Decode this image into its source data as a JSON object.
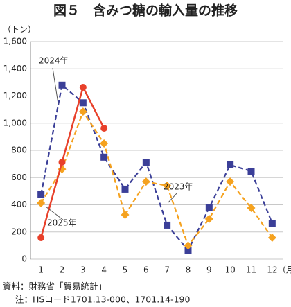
{
  "chart_data": {
    "type": "line",
    "title": "図５　含みつ糖の輸入量の推移",
    "y_unit": "（トン）",
    "x_unit": "（月）",
    "categories": [
      "1",
      "2",
      "3",
      "4",
      "5",
      "6",
      "7",
      "8",
      "9",
      "10",
      "11",
      "12"
    ],
    "series": [
      {
        "name": "2024年",
        "color": "#3b3f98",
        "values": [
          474,
          1280,
          1150,
          750,
          515,
          713,
          250,
          66,
          377,
          693,
          647,
          265
        ]
      },
      {
        "name": "2023年",
        "color": "#f5a21f",
        "values": [
          413,
          662,
          1085,
          851,
          326,
          570,
          540,
          100,
          296,
          570,
          377,
          158
        ]
      },
      {
        "name": "2025年",
        "color": "#e8402a",
        "values": [
          158,
          713,
          1264,
          963,
          null,
          null,
          null,
          null,
          null,
          null,
          null,
          null
        ]
      }
    ],
    "ylim": [
      0,
      1600
    ],
    "yticks": [
      0,
      200,
      400,
      600,
      800,
      {
        "value": 1000,
        "label": "1,000"
      },
      {
        "value": 1200,
        "label": "1,200"
      },
      {
        "value": 1400,
        "label": "1,400"
      },
      {
        "value": 1600,
        "label": "1,600"
      }
    ],
    "grid": true,
    "notes": [
      "資料：財務省「貿易統計」",
      "注：HSコード1701.13-000、1701.14-190"
    ]
  }
}
